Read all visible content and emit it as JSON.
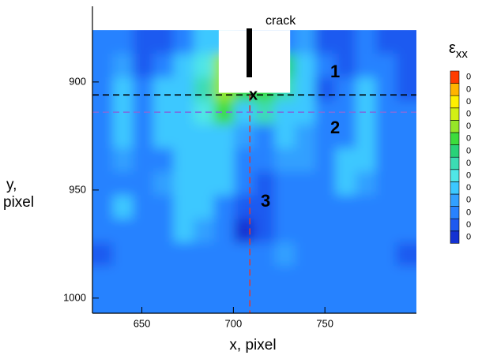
{
  "chart_data": {
    "type": "contour",
    "xlabel": "x, pixel",
    "ylabel": [
      "y,",
      "pixel"
    ],
    "xlim": [
      623,
      800
    ],
    "xticks": [
      650,
      700,
      750
    ],
    "ylim": [
      1007,
      865
    ],
    "yticks": [
      900,
      950,
      1000
    ],
    "field": {
      "top": 876,
      "z": [
        [
          2,
          2,
          1,
          1,
          2,
          4,
          4,
          2,
          2,
          2,
          3,
          1,
          1,
          2,
          1,
          1
        ],
        [
          2,
          3,
          1,
          2,
          4,
          5,
          9,
          10,
          9,
          7,
          4,
          2,
          1,
          2,
          2,
          1
        ],
        [
          2,
          4,
          2,
          4,
          4,
          6,
          9,
          8,
          8,
          6,
          4,
          1,
          2,
          4,
          2,
          1
        ],
        [
          2,
          4,
          2,
          4,
          4,
          5,
          8,
          4,
          6,
          4,
          4,
          2,
          2,
          4,
          2,
          2
        ],
        [
          2,
          4,
          2,
          4,
          4,
          4,
          4,
          3,
          2,
          4,
          3,
          2,
          2,
          4,
          2,
          2
        ],
        [
          2,
          3,
          2,
          2,
          4,
          4,
          4,
          2,
          2,
          3,
          3,
          2,
          4,
          4,
          2,
          2
        ],
        [
          2,
          2,
          2,
          3,
          4,
          4,
          4,
          2,
          1,
          2,
          2,
          2,
          4,
          3,
          2,
          2
        ],
        [
          2,
          4,
          2,
          2,
          4,
          4,
          2,
          1,
          1,
          2,
          2,
          2,
          2,
          2,
          2,
          2
        ],
        [
          2,
          2,
          2,
          2,
          4,
          3,
          2,
          0,
          1,
          2,
          2,
          2,
          2,
          2,
          2,
          2
        ],
        [
          1,
          2,
          2,
          2,
          2,
          2,
          2,
          2,
          2,
          3,
          2,
          2,
          2,
          2,
          2,
          1
        ],
        [
          2,
          2,
          2,
          2,
          2,
          2,
          2,
          2,
          2,
          2,
          2,
          2,
          2,
          2,
          2,
          2
        ],
        [
          2,
          2,
          2,
          2,
          2,
          2,
          2,
          2,
          2,
          2,
          2,
          2,
          2,
          2,
          2,
          2
        ]
      ]
    },
    "notch": {
      "x": [
        692,
        731
      ],
      "bottom": 905
    },
    "hlines": [
      {
        "value": 906,
        "color": "#000000"
      },
      {
        "value": 914,
        "color": "#7a6ee0"
      }
    ],
    "vlines": [
      {
        "value": 709,
        "color": "#d83a3a"
      }
    ],
    "annotations": [
      "crack",
      "1",
      "2",
      "3",
      "x"
    ],
    "colorbar": {
      "title": "ε",
      "title_sub": "xx",
      "labels": [
        "0",
        "0",
        "0",
        "0",
        "0",
        "0",
        "0",
        "0",
        "0",
        "0",
        "0",
        "0",
        "0",
        "0"
      ],
      "colors": [
        "#1432d2",
        "#1e5af0",
        "#2882ff",
        "#32a0ff",
        "#3cc8ff",
        "#50e6e6",
        "#3cdcb4",
        "#28d278",
        "#3cdc3c",
        "#96e628",
        "#d2f014",
        "#fff000",
        "#ffb400",
        "#ff3c00"
      ]
    }
  }
}
